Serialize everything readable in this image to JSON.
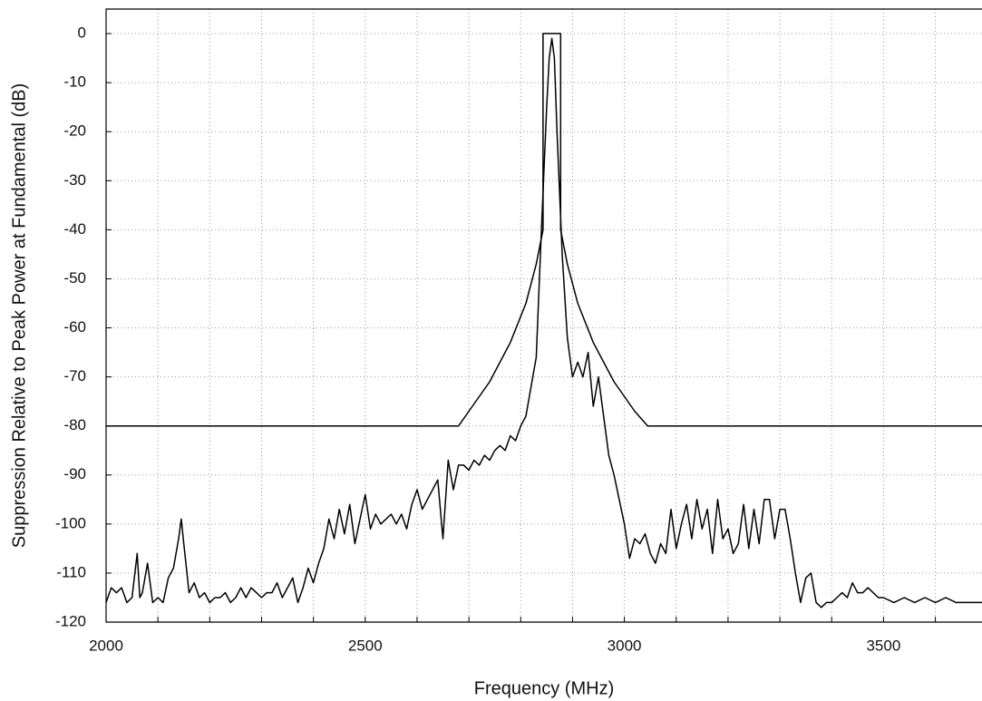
{
  "chart_data": {
    "type": "line",
    "xlabel": "Frequency (MHz)",
    "ylabel": "Suppression Relative to Peak Power at Fundamental (dB)",
    "xlim": [
      2000,
      3690
    ],
    "ylim": [
      -120,
      5
    ],
    "xticks": [
      2000,
      2500,
      3000,
      3500
    ],
    "xgrid": [
      2000,
      2100,
      2200,
      2300,
      2400,
      2500,
      2600,
      2700,
      2800,
      2900,
      3000,
      3100,
      3200,
      3300,
      3400,
      3500,
      3600
    ],
    "yticks": [
      0,
      -10,
      -20,
      -30,
      -40,
      -50,
      -60,
      -70,
      -80,
      -90,
      -100,
      -110,
      -120
    ],
    "grid": true,
    "series": [
      {
        "color": "#000000",
        "x": [
          2000,
          2680,
          2700,
          2740,
          2780,
          2810,
          2830,
          2843,
          2843,
          2877,
          2877,
          2890,
          2910,
          2940,
          2980,
          3020,
          3045,
          3050,
          3690
        ],
        "values": [
          -80,
          -80,
          -77,
          -71,
          -63,
          -55,
          -47,
          -40,
          0,
          0,
          -40,
          -47,
          -55,
          -63,
          -71,
          -77,
          -80,
          -80,
          -80
        ]
      },
      {
        "color": "#000000",
        "x": [
          2000,
          2010,
          2020,
          2030,
          2040,
          2050,
          2060,
          2065,
          2070,
          2080,
          2090,
          2100,
          2110,
          2120,
          2130,
          2140,
          2145,
          2150,
          2160,
          2170,
          2180,
          2190,
          2200,
          2210,
          2220,
          2230,
          2240,
          2250,
          2260,
          2270,
          2280,
          2290,
          2300,
          2310,
          2320,
          2330,
          2340,
          2350,
          2360,
          2370,
          2380,
          2390,
          2400,
          2410,
          2420,
          2430,
          2440,
          2450,
          2460,
          2470,
          2480,
          2490,
          2500,
          2510,
          2520,
          2530,
          2540,
          2550,
          2560,
          2570,
          2580,
          2590,
          2600,
          2610,
          2620,
          2630,
          2640,
          2650,
          2660,
          2670,
          2680,
          2690,
          2700,
          2710,
          2720,
          2730,
          2740,
          2750,
          2760,
          2770,
          2780,
          2790,
          2800,
          2810,
          2820,
          2830,
          2840,
          2850,
          2855,
          2860,
          2865,
          2870,
          2880,
          2890,
          2900,
          2910,
          2920,
          2930,
          2940,
          2950,
          2960,
          2970,
          2980,
          2990,
          3000,
          3010,
          3020,
          3030,
          3040,
          3050,
          3060,
          3070,
          3080,
          3090,
          3100,
          3110,
          3120,
          3130,
          3140,
          3150,
          3160,
          3170,
          3180,
          3190,
          3200,
          3210,
          3220,
          3230,
          3240,
          3250,
          3260,
          3270,
          3280,
          3290,
          3300,
          3310,
          3320,
          3330,
          3340,
          3350,
          3360,
          3370,
          3380,
          3390,
          3400,
          3410,
          3420,
          3430,
          3440,
          3450,
          3460,
          3470,
          3480,
          3490,
          3500,
          3520,
          3540,
          3560,
          3580,
          3600,
          3620,
          3640,
          3660,
          3680,
          3690
        ],
        "values": [
          -116,
          -113,
          -114,
          -113,
          -116,
          -115,
          -106,
          -115,
          -114,
          -108,
          -116,
          -115,
          -116,
          -111,
          -109,
          -103,
          -99,
          -104,
          -114,
          -112,
          -115,
          -114,
          -116,
          -115,
          -115,
          -114,
          -116,
          -115,
          -113,
          -115,
          -113,
          -114,
          -115,
          -114,
          -114,
          -112,
          -115,
          -113,
          -111,
          -116,
          -113,
          -109,
          -112,
          -108,
          -105,
          -99,
          -103,
          -97,
          -102,
          -96,
          -104,
          -99,
          -94,
          -101,
          -98,
          -100,
          -99,
          -98,
          -100,
          -98,
          -101,
          -96,
          -93,
          -97,
          -95,
          -93,
          -91,
          -103,
          -87,
          -93,
          -88,
          -88,
          -89,
          -87,
          -88,
          -86,
          -87,
          -85,
          -84,
          -85,
          -82,
          -83,
          -80,
          -78,
          -72,
          -66,
          -40,
          -15,
          -5,
          -1,
          -5,
          -20,
          -45,
          -62,
          -70,
          -67,
          -70,
          -65,
          -76,
          -70,
          -78,
          -86,
          -90,
          -95,
          -100,
          -107,
          -103,
          -104,
          -102,
          -106,
          -108,
          -104,
          -106,
          -97,
          -105,
          -100,
          -96,
          -103,
          -95,
          -101,
          -97,
          -106,
          -95,
          -103,
          -101,
          -106,
          -104,
          -96,
          -105,
          -97,
          -104,
          -95,
          -95,
          -103,
          -97,
          -97,
          -103,
          -110,
          -116,
          -111,
          -110,
          -116,
          -117,
          -116,
          -116,
          -115,
          -114,
          -115,
          -112,
          -114,
          -114,
          -113,
          -114,
          -115,
          -115,
          -116,
          -115,
          -116,
          -115,
          -116,
          -115,
          -116,
          -116,
          -116,
          -116
        ]
      }
    ]
  }
}
